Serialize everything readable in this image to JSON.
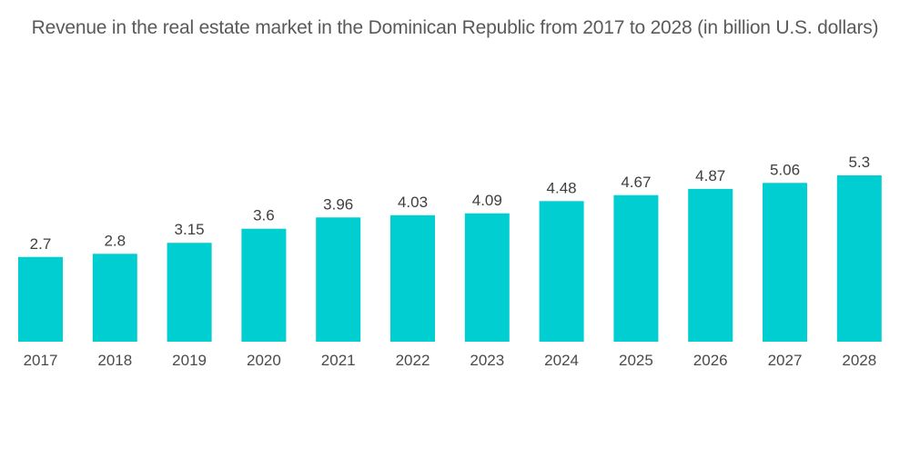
{
  "chart_data": {
    "type": "bar",
    "title": "Revenue in the real estate market in the Dominican Republic from 2017 to 2028 (in billion U.S. dollars)",
    "xlabel": "",
    "ylabel": "",
    "categories": [
      "2017",
      "2018",
      "2019",
      "2020",
      "2021",
      "2022",
      "2023",
      "2024",
      "2025",
      "2026",
      "2027",
      "2028"
    ],
    "values": [
      2.7,
      2.8,
      3.15,
      3.6,
      3.96,
      4.03,
      4.09,
      4.48,
      4.67,
      4.87,
      5.06,
      5.3
    ],
    "value_labels": [
      "2.7",
      "2.8",
      "3.15",
      "3.6",
      "3.96",
      "4.03",
      "4.09",
      "4.48",
      "4.67",
      "4.87",
      "5.06",
      "5.3"
    ],
    "ylim": [
      0,
      5.3
    ],
    "grid": false,
    "legend": "none",
    "bar_color": "#00ced1"
  }
}
